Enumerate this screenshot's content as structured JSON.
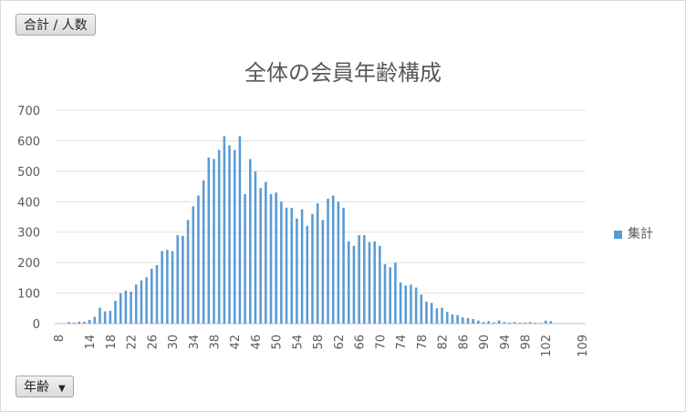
{
  "buttons": {
    "value_field": "合計 / 人数",
    "axis_field": "年齢",
    "axis_arrow": "▼"
  },
  "chart_data": {
    "type": "bar",
    "title": "全体の会員年齢構成",
    "xlabel": "",
    "ylabel": "",
    "ylim": [
      0,
      700
    ],
    "yticks": [
      0,
      100,
      200,
      300,
      400,
      500,
      600,
      700
    ],
    "grid": true,
    "legend_position": "right",
    "bar_color": "#5b9bd5",
    "x_tick_labels": [
      "8",
      "14",
      "18",
      "22",
      "26",
      "30",
      "34",
      "38",
      "42",
      "46",
      "50",
      "54",
      "58",
      "62",
      "66",
      "70",
      "74",
      "78",
      "82",
      "86",
      "90",
      "94",
      "98",
      "102",
      "109"
    ],
    "categories": [
      "8",
      "10",
      "11",
      "12",
      "13",
      "14",
      "15",
      "16",
      "17",
      "18",
      "19",
      "20",
      "21",
      "22",
      "23",
      "24",
      "25",
      "26",
      "27",
      "28",
      "29",
      "30",
      "31",
      "32",
      "33",
      "34",
      "35",
      "36",
      "37",
      "38",
      "39",
      "40",
      "41",
      "42",
      "43",
      "44",
      "45",
      "46",
      "47",
      "48",
      "49",
      "50",
      "51",
      "52",
      "53",
      "54",
      "55",
      "56",
      "57",
      "58",
      "59",
      "60",
      "61",
      "62",
      "63",
      "64",
      "65",
      "66",
      "67",
      "68",
      "69",
      "70",
      "71",
      "72",
      "73",
      "74",
      "75",
      "76",
      "77",
      "78",
      "79",
      "80",
      "81",
      "82",
      "83",
      "84",
      "85",
      "86",
      "87",
      "88",
      "89",
      "90",
      "91",
      "92",
      "93",
      "94",
      "95",
      "96",
      "97",
      "98",
      "99",
      "100",
      "101",
      "102",
      "103",
      "109"
    ],
    "series": [
      {
        "name": "集計",
        "values": [
          1,
          5,
          3,
          6,
          6,
          12,
          22,
          52,
          40,
          42,
          75,
          100,
          108,
          105,
          128,
          142,
          152,
          180,
          192,
          238,
          242,
          238,
          290,
          288,
          340,
          385,
          420,
          470,
          545,
          540,
          570,
          615,
          585,
          570,
          615,
          425,
          540,
          500,
          445,
          465,
          425,
          430,
          400,
          380,
          380,
          345,
          375,
          320,
          360,
          395,
          340,
          410,
          420,
          400,
          380,
          270,
          255,
          290,
          290,
          268,
          270,
          255,
          195,
          185,
          200,
          135,
          125,
          128,
          118,
          95,
          72,
          68,
          50,
          52,
          38,
          30,
          28,
          20,
          18,
          15,
          10,
          5,
          8,
          4,
          10,
          5,
          3,
          5,
          3,
          3,
          5,
          3,
          2,
          10,
          8,
          1
        ]
      }
    ]
  }
}
